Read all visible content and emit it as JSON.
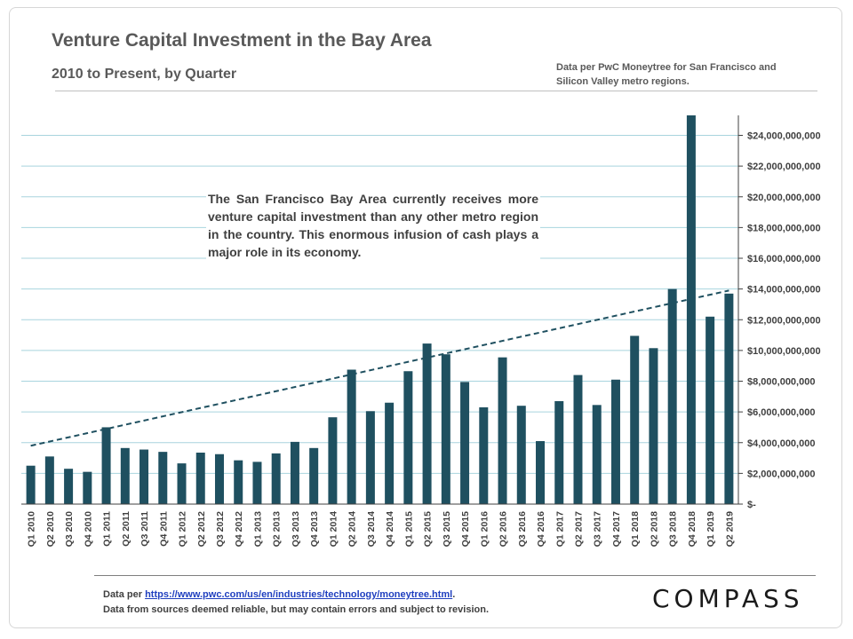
{
  "header": {
    "title": "Venture Capital Investment in the Bay Area",
    "subtitle": "2010 to Present, by Quarter",
    "source_note_line1": "Data per PwC Moneytree for San Francisco and",
    "source_note_line2": "Silicon Valley metro regions."
  },
  "annotation": "The San Francisco Bay Area currently receives more venture capital investment than any other metro region in the country. This enormous infusion of cash plays a major role in its economy.",
  "footer": {
    "prefix": "Data per ",
    "link": "https://www.pwc.com/us/en/industries/technology/moneytree.html",
    "suffix": ".",
    "line2": "Data from sources deemed reliable, but may contain errors and subject to revision."
  },
  "brand": "COMPASS",
  "colors": {
    "bar": "#1f5060",
    "grid": "#a8d4de",
    "trend": "#1f5060"
  },
  "chart_data": {
    "type": "bar",
    "title": "Venture Capital Investment in the Bay Area",
    "ylabel": "",
    "xlabel": "",
    "ylim": [
      0,
      25300000000
    ],
    "yticks": [
      0,
      2000000000,
      4000000000,
      6000000000,
      8000000000,
      10000000000,
      12000000000,
      14000000000,
      16000000000,
      18000000000,
      20000000000,
      22000000000,
      24000000000
    ],
    "ytick_labels": [
      "$-",
      "$2,000,000,000",
      "$4,000,000,000",
      "$6,000,000,000",
      "$8,000,000,000",
      "$10,000,000,000",
      "$12,000,000,000",
      "$14,000,000,000",
      "$16,000,000,000",
      "$18,000,000,000",
      "$20,000,000,000",
      "$22,000,000,000",
      "$24,000,000,000"
    ],
    "y_axis_side": "right",
    "grid": true,
    "categories": [
      "Q1 2010",
      "Q2 2010",
      "Q3 2010",
      "Q4 2010",
      "Q1 2011",
      "Q2 2011",
      "Q3 2011",
      "Q4 2011",
      "Q1 2012",
      "Q2 2012",
      "Q3 2012",
      "Q4 2012",
      "Q1 2013",
      "Q2 2013",
      "Q3 2013",
      "Q4 2013",
      "Q1 2014",
      "Q2 2014",
      "Q3 2014",
      "Q4 2014",
      "Q1 2015",
      "Q2 2015",
      "Q3 2015",
      "Q4 2015",
      "Q1 2016",
      "Q2 2016",
      "Q3 2016",
      "Q4 2016",
      "Q1 2017",
      "Q2 2017",
      "Q3 2017",
      "Q4 2017",
      "Q1 2018",
      "Q2 2018",
      "Q3 2018",
      "Q4 2018",
      "Q1 2019",
      "Q2 2019"
    ],
    "values": [
      2500000000,
      3100000000,
      2300000000,
      2100000000,
      5000000000,
      3650000000,
      3550000000,
      3400000000,
      2650000000,
      3350000000,
      3250000000,
      2850000000,
      2750000000,
      3300000000,
      4050000000,
      3650000000,
      5650000000,
      8750000000,
      6050000000,
      6600000000,
      8650000000,
      10450000000,
      9750000000,
      7950000000,
      6300000000,
      9550000000,
      6400000000,
      4100000000,
      6700000000,
      8400000000,
      6450000000,
      8100000000,
      10950000000,
      10150000000,
      14000000000,
      25300000000,
      12200000000,
      13700000000
    ],
    "trendline": {
      "type": "linear",
      "style": "dashed",
      "start": 3800000000,
      "end": 13900000000
    }
  }
}
